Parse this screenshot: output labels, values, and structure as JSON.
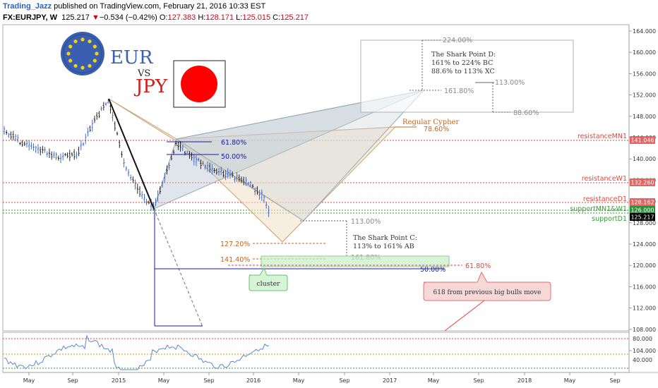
{
  "header": {
    "author": "Trading_Jazz",
    "published_text": "published on TradingView.com, February 21, 2016 10:33 EST",
    "symbol": "FX:EURJPY, W",
    "last": "125.217",
    "change_arrow": "▼",
    "change": "−0.534 (−0.42%)",
    "o_label": "O:",
    "o_value": "127.383",
    "h_label": "H:",
    "h_value": "128.171",
    "l_label": "L:",
    "l_value": "125.015",
    "c_label": "C:",
    "c_value": "125.217"
  },
  "logos": {
    "eur": "EUR",
    "vs": "VS",
    "jpy": "JPY"
  },
  "price_axis": {
    "ticks": [
      "164.000",
      "160.000",
      "156.000",
      "152.000",
      "148.000",
      "144.000",
      "140.000",
      "136.000",
      "132.000",
      "128.000",
      "124.000",
      "120.000",
      "116.000",
      "112.000",
      "108.000",
      "104.000"
    ],
    "badges": {
      "resistance_mn1": "141.046",
      "resistance_w1": "132.260",
      "resistance_d1": "128.162",
      "support_mn1w1": "126.000",
      "last_price": "125.217"
    }
  },
  "osc_axis": {
    "ticks": [
      "80.000",
      "40.000"
    ]
  },
  "time_axis": {
    "ticks": [
      "May",
      "Sep",
      "2015",
      "May",
      "Sep",
      "2016",
      "May",
      "Sep",
      "2017",
      "May",
      "Sep",
      "2018",
      "May",
      "Sep"
    ]
  },
  "levels": {
    "resistance_mn1": "resistanceMN1",
    "resistance_w1": "resistanceW1",
    "resistance_d1": "resistanceD1",
    "support_mn1w1": "supportMN1&W1",
    "support_d1": "supportD1"
  },
  "fib_labels": {
    "f618_top": "61.80%",
    "f50_top": "50.00%",
    "f224": "224.00%",
    "f1618_d": "161.80%",
    "f113_d": "113.00%",
    "f886_d": "88.60%",
    "cypher_786": "78.60%",
    "f113_c": "113.00%",
    "f1272": "127.20%",
    "f1414": "141.40%",
    "f1618_c": "161.80%",
    "f50_bottom": "50.00%",
    "f618_big": "61.80%"
  },
  "annotations": {
    "shark_d_1": "The Shark Point D:",
    "shark_d_2": "161% to 224% BC",
    "shark_d_3": "88.6% to 113% XC",
    "shark_c_1": "The Shark Point C:",
    "shark_c_2": "113% to 161% AB",
    "cypher": "Regular Cypher",
    "cluster": "cluster",
    "bulls_move": "618 from previous big bulls move"
  },
  "colors": {
    "blue": "#1a1aaa",
    "red_dashed": "#e0453a",
    "green_dashed": "#3a9a3a",
    "orange": "#c8641e",
    "callout_red": "#f8d7d7",
    "callout_green": "#d6f5d6",
    "osc_line": "#5b87c9"
  }
}
